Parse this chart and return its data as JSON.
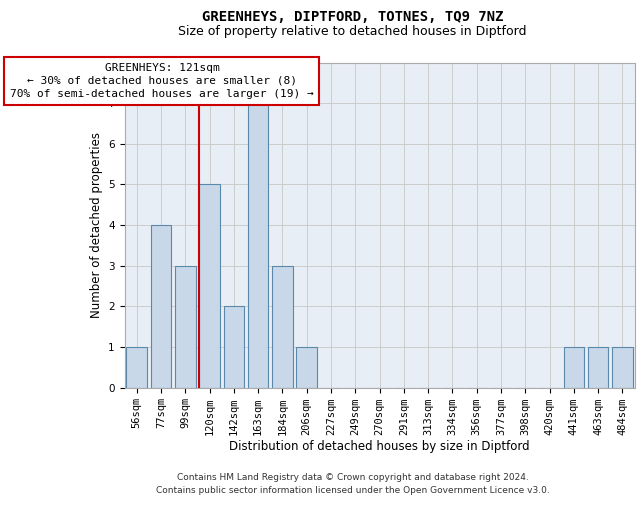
{
  "title": "GREENHEYS, DIPTFORD, TOTNES, TQ9 7NZ",
  "subtitle": "Size of property relative to detached houses in Diptford",
  "xlabel": "Distribution of detached houses by size in Diptford",
  "ylabel": "Number of detached properties",
  "categories": [
    "56sqm",
    "77sqm",
    "99sqm",
    "120sqm",
    "142sqm",
    "163sqm",
    "184sqm",
    "206sqm",
    "227sqm",
    "249sqm",
    "270sqm",
    "291sqm",
    "313sqm",
    "334sqm",
    "356sqm",
    "377sqm",
    "398sqm",
    "420sqm",
    "441sqm",
    "463sqm",
    "484sqm"
  ],
  "values": [
    1,
    4,
    3,
    5,
    2,
    7,
    3,
    1,
    0,
    0,
    0,
    0,
    0,
    0,
    0,
    0,
    0,
    0,
    1,
    1,
    1
  ],
  "bar_color": "#c8d8e8",
  "bar_edge_color": "#5a88aa",
  "bar_linewidth": 0.8,
  "property_index": 3,
  "property_line_color": "#cc0000",
  "annotation_text_line1": "GREENHEYS: 121sqm",
  "annotation_text_line2": "← 30% of detached houses are smaller (8)",
  "annotation_text_line3": "70% of semi-detached houses are larger (19) →",
  "ylim": [
    0,
    8
  ],
  "yticks": [
    0,
    1,
    2,
    3,
    4,
    5,
    6,
    7,
    8
  ],
  "grid_color": "#cccccc",
  "plot_bg_color": "#e8eef5",
  "footnote_line1": "Contains HM Land Registry data © Crown copyright and database right 2024.",
  "footnote_line2": "Contains public sector information licensed under the Open Government Licence v3.0.",
  "title_fontsize": 10,
  "subtitle_fontsize": 9,
  "xlabel_fontsize": 8.5,
  "ylabel_fontsize": 8.5,
  "tick_fontsize": 7.5,
  "footnote_fontsize": 6.5,
  "annotation_fontsize": 8
}
